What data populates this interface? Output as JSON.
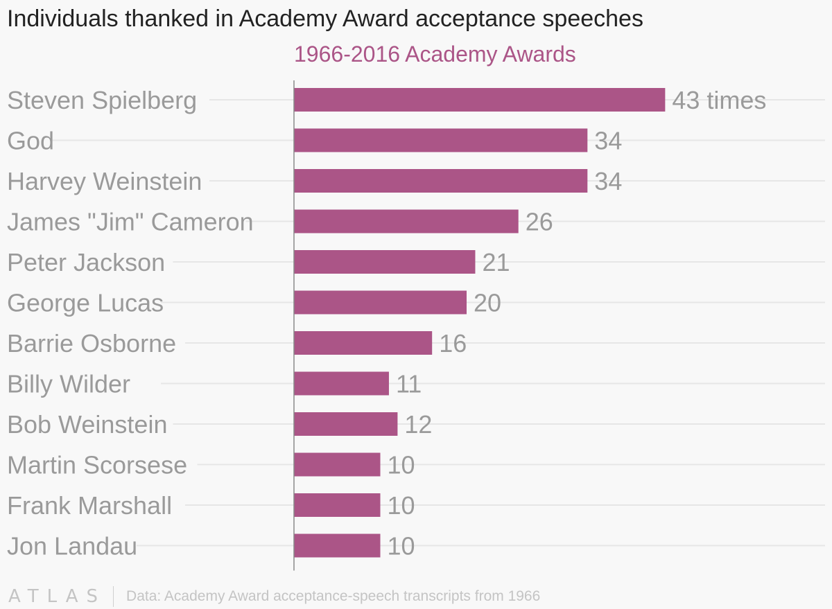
{
  "chart_data": {
    "type": "bar",
    "orientation": "horizontal",
    "title": "Individuals thanked in Academy Award acceptance speeches",
    "subtitle": "1966-2016 Academy Awards",
    "categories": [
      "Steven Spielberg",
      "God",
      "Harvey Weinstein",
      "James \"Jim\" Cameron",
      "Peter Jackson",
      "George Lucas",
      "Barrie Osborne",
      "Billy Wilder",
      "Bob Weinstein",
      "Martin Scorsese",
      "Frank Marshall",
      "Jon Landau"
    ],
    "values": [
      43,
      34,
      34,
      26,
      21,
      20,
      16,
      11,
      12,
      10,
      10,
      10
    ],
    "value_labels": [
      "43 times",
      "34",
      "34",
      "26",
      "21",
      "20",
      "16",
      "11",
      "12",
      "10",
      "10",
      "10"
    ],
    "xlim": [
      0,
      50
    ],
    "grid": false,
    "colors": {
      "bar": "#ab5587",
      "subtitle": "#ab5587",
      "title": "#222222",
      "label": "#9a9a9a",
      "axis": "#888888",
      "guide": "#e6e6e6",
      "background": "#f8f8f8"
    }
  },
  "footer": {
    "logo_text": "ATLAS",
    "source": "Data: Academy Award acceptance-speech transcripts from 1966"
  }
}
